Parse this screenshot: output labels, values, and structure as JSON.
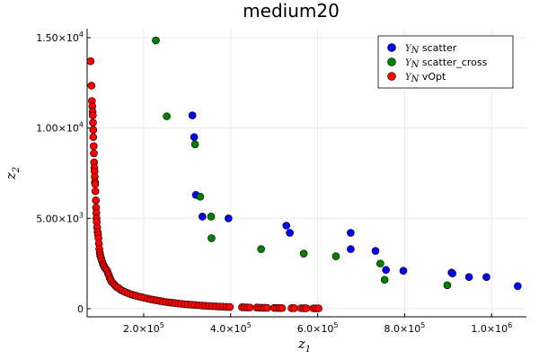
{
  "chart_data": {
    "type": "scatter",
    "title": "medium20",
    "xlabel": "z",
    "xlabel_sub": "1",
    "ylabel": "z",
    "ylabel_sub": "2",
    "xlim": [
      70000,
      1080000
    ],
    "ylim": [
      -450,
      15500
    ],
    "xticks": [
      {
        "value": 200000,
        "mantissa": "2.0×10",
        "exp": "5"
      },
      {
        "value": 400000,
        "mantissa": "4.0×10",
        "exp": "5"
      },
      {
        "value": 600000,
        "mantissa": "6.0×10",
        "exp": "5"
      },
      {
        "value": 800000,
        "mantissa": "8.0×10",
        "exp": "5"
      },
      {
        "value": 1000000,
        "mantissa": "1.0×10",
        "exp": "6"
      }
    ],
    "yticks": [
      {
        "value": 0,
        "mantissa": "0",
        "exp": ""
      },
      {
        "value": 5000,
        "mantissa": "5.00×10",
        "exp": "3"
      },
      {
        "value": 10000,
        "mantissa": "1.00×10",
        "exp": "4"
      },
      {
        "value": 15000,
        "mantissa": "1.50×10",
        "exp": "4"
      }
    ],
    "grid": true,
    "legend_position": "top-right",
    "series": [
      {
        "name": "scatter",
        "legend_prefix": "Y",
        "legend_prefix_sub": "N",
        "color": "#0000ff",
        "points": [
          [
            312000,
            10700
          ],
          [
            316000,
            9500
          ],
          [
            320000,
            6300
          ],
          [
            335000,
            5100
          ],
          [
            395000,
            5000
          ],
          [
            528000,
            4600
          ],
          [
            536000,
            4200
          ],
          [
            676000,
            4200
          ],
          [
            676000,
            3300
          ],
          [
            733000,
            3200
          ],
          [
            757000,
            2150
          ],
          [
            797000,
            2100
          ],
          [
            908000,
            2000
          ],
          [
            910000,
            1950
          ],
          [
            948000,
            1750
          ],
          [
            988000,
            1750
          ],
          [
            1060000,
            1250
          ]
        ]
      },
      {
        "name": "scatter_cross",
        "legend_prefix": "Y",
        "legend_prefix_sub": "N",
        "color": "#008000",
        "points": [
          [
            228000,
            14850
          ],
          [
            253000,
            10650
          ],
          [
            318000,
            9100
          ],
          [
            330000,
            6200
          ],
          [
            355000,
            5100
          ],
          [
            356000,
            3900
          ],
          [
            470000,
            3300
          ],
          [
            568000,
            3050
          ],
          [
            642000,
            2900
          ],
          [
            744000,
            2500
          ],
          [
            754000,
            1600
          ],
          [
            898000,
            1300
          ]
        ]
      },
      {
        "name": "vOpt",
        "legend_prefix": "Y",
        "legend_prefix_sub": "N",
        "color": "#ff0000",
        "points": [
          [
            78000,
            13700
          ],
          [
            80000,
            12350
          ],
          [
            81000,
            11500
          ],
          [
            82000,
            11200
          ],
          [
            82500,
            10900
          ],
          [
            83000,
            10700
          ],
          [
            83500,
            10300
          ],
          [
            84000,
            9900
          ],
          [
            84000,
            9500
          ],
          [
            85000,
            9000
          ],
          [
            85500,
            8600
          ],
          [
            86000,
            8100
          ],
          [
            86500,
            7800
          ],
          [
            87000,
            7600
          ],
          [
            87500,
            7300
          ],
          [
            88000,
            7000
          ],
          [
            88500,
            6900
          ],
          [
            89000,
            6500
          ],
          [
            90000,
            6000
          ],
          [
            90500,
            5600
          ],
          [
            91000,
            5300
          ],
          [
            91500,
            5000
          ],
          [
            92000,
            4800
          ],
          [
            93000,
            4500
          ],
          [
            94000,
            4250
          ],
          [
            95000,
            4100
          ],
          [
            96000,
            3900
          ],
          [
            97000,
            3600
          ],
          [
            98000,
            3300
          ],
          [
            99000,
            3100
          ],
          [
            100000,
            2950
          ],
          [
            102000,
            2800
          ],
          [
            104000,
            2650
          ],
          [
            106000,
            2500
          ],
          [
            108000,
            2400
          ],
          [
            110000,
            2300
          ],
          [
            113000,
            2200
          ],
          [
            116000,
            2100
          ],
          [
            118000,
            1950
          ],
          [
            120000,
            1850
          ],
          [
            122000,
            1700
          ],
          [
            124000,
            1600
          ],
          [
            126000,
            1500
          ],
          [
            130000,
            1400
          ],
          [
            134000,
            1300
          ],
          [
            138000,
            1200
          ],
          [
            142000,
            1150
          ],
          [
            147000,
            1050
          ],
          [
            152000,
            980
          ],
          [
            158000,
            920
          ],
          [
            164000,
            860
          ],
          [
            170000,
            800
          ],
          [
            176000,
            760
          ],
          [
            182000,
            720
          ],
          [
            188000,
            680
          ],
          [
            195000,
            640
          ],
          [
            202000,
            600
          ],
          [
            209000,
            560
          ],
          [
            216000,
            520
          ],
          [
            223000,
            490
          ],
          [
            230000,
            460
          ],
          [
            237000,
            430
          ],
          [
            244000,
            400
          ],
          [
            251000,
            370
          ],
          [
            258000,
            350
          ],
          [
            265000,
            330
          ],
          [
            272000,
            310
          ],
          [
            279000,
            290
          ],
          [
            286000,
            270
          ],
          [
            294000,
            250
          ],
          [
            302000,
            235
          ],
          [
            310000,
            220
          ],
          [
            318000,
            205
          ],
          [
            326000,
            190
          ],
          [
            334000,
            175
          ],
          [
            342000,
            160
          ],
          [
            350000,
            150
          ],
          [
            358000,
            140
          ],
          [
            366000,
            130
          ],
          [
            374000,
            120
          ],
          [
            382000,
            110
          ],
          [
            390000,
            100
          ],
          [
            398000,
            95
          ],
          [
            426000,
            80
          ],
          [
            432000,
            75
          ],
          [
            438000,
            70
          ],
          [
            444000,
            65
          ],
          [
            460000,
            60
          ],
          [
            466000,
            55
          ],
          [
            472000,
            50
          ],
          [
            478000,
            48
          ],
          [
            484000,
            45
          ],
          [
            500000,
            42
          ],
          [
            506000,
            40
          ],
          [
            512000,
            38
          ],
          [
            518000,
            35
          ],
          [
            540000,
            32
          ],
          [
            546000,
            30
          ],
          [
            562000,
            28
          ],
          [
            568000,
            26
          ],
          [
            574000,
            24
          ],
          [
            590000,
            22
          ],
          [
            596000,
            20
          ],
          [
            602000,
            18
          ]
        ]
      }
    ]
  }
}
